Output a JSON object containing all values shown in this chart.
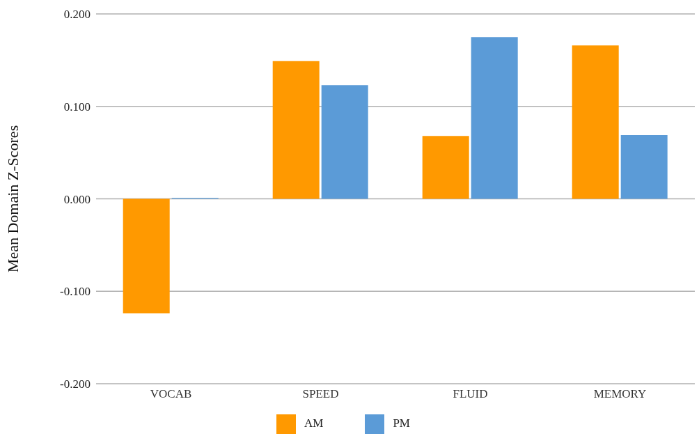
{
  "chart_data": {
    "type": "bar",
    "ylabel": "Mean Domain Z-Scores",
    "categories": [
      "VOCAB",
      "SPEED",
      "FLUID",
      "MEMORY"
    ],
    "series": [
      {
        "name": "AM",
        "color": "#ff9900",
        "values": [
          -0.124,
          0.149,
          0.068,
          0.166
        ]
      },
      {
        "name": "PM",
        "color": "#5b9bd7",
        "values": [
          0.001,
          0.123,
          0.175,
          0.069
        ]
      }
    ],
    "ylim": [
      -0.2,
      0.2
    ],
    "yticks": [
      {
        "value": -0.2,
        "label": "-0.200"
      },
      {
        "value": -0.1,
        "label": "-0.100"
      },
      {
        "value": 0,
        "label": "0.000"
      },
      {
        "value": 0.1,
        "label": "0.100"
      },
      {
        "value": 0.2,
        "label": "0.200"
      }
    ],
    "grid": "y",
    "legend": "bottom"
  }
}
